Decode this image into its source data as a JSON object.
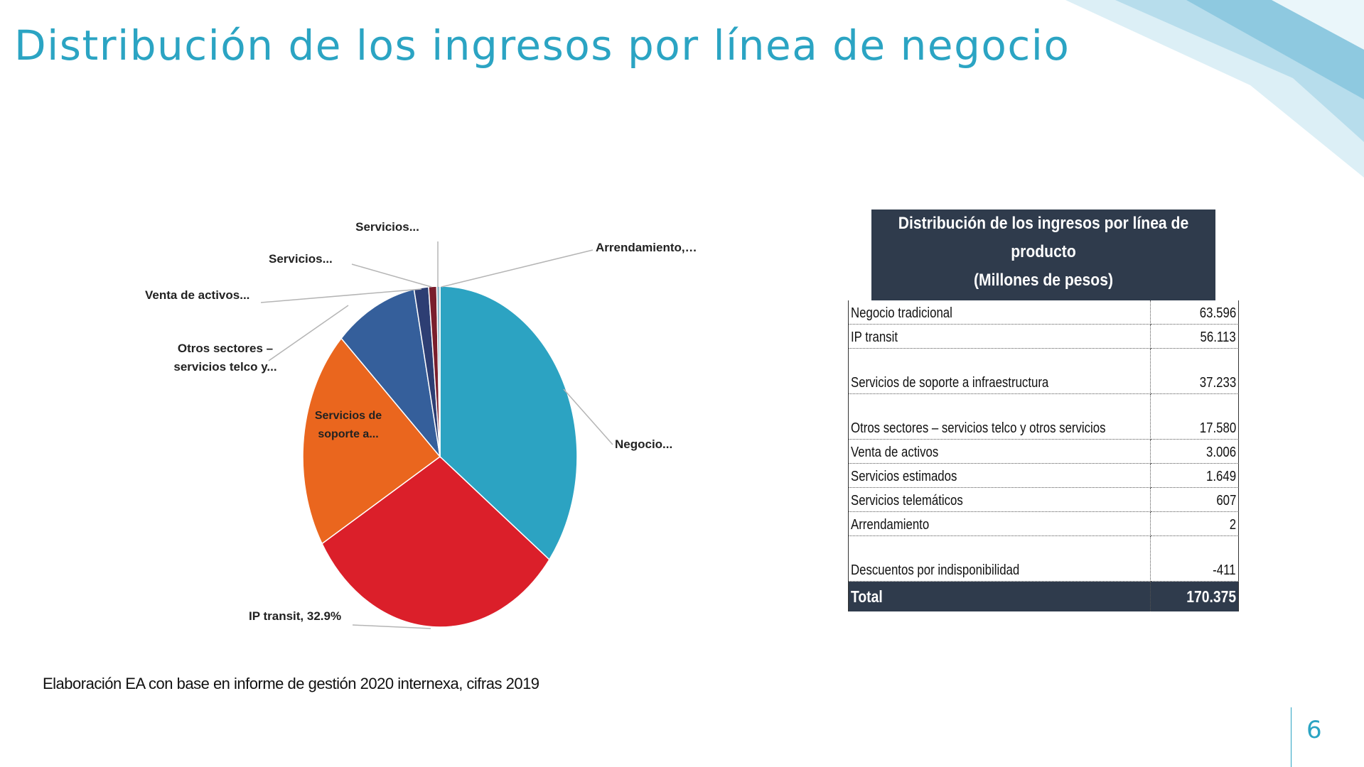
{
  "slide": {
    "title": "Distribución de los ingresos por línea de negocio",
    "footnote": "Elaboración EA con base en informe de gestión 2020  internexa, cifras 2019",
    "page_number": "6"
  },
  "colors": {
    "title": "#2BA4C3",
    "table_header": "#2F3B4C"
  },
  "chart_data": {
    "type": "pie",
    "start": "12 o'clock, clockwise",
    "slices": [
      {
        "label": "Negocio...",
        "value": 37.3,
        "color": "#2CA3C2"
      },
      {
        "label": "IP transit, 32.9%",
        "value": 32.9,
        "color": "#DB1F2A"
      },
      {
        "label": "Servicios de soporte a...",
        "value": 21.9,
        "color": "#EA661E"
      },
      {
        "label": "Otros sectores – servicios telco y...",
        "value": 10.3,
        "color": "#355F9B"
      },
      {
        "label": "Venta de activos...",
        "value": 1.8,
        "color": "#2D3E73"
      },
      {
        "label": "Servicios...",
        "value": 1.0,
        "color": "#7A1E2C"
      },
      {
        "label": "Servicios...",
        "value": 0.4,
        "color": "#8FB7C7"
      },
      {
        "label": "Arrendamiento,…",
        "value": 0.001,
        "color": "#2CA3C2"
      }
    ]
  },
  "table": {
    "title_line1": "Distribución de los ingresos por línea de producto",
    "title_line2": "(Millones de pesos)",
    "rows": [
      {
        "label": "Negocio tradicional",
        "value": "63.596"
      },
      {
        "label": "IP transit",
        "value": "56.113"
      },
      {
        "label": "Servicios de soporte a infraestructura",
        "value": "37.233"
      },
      {
        "label": "Otros sectores – servicios telco y otros servicios",
        "value": "17.580"
      },
      {
        "label": "Venta de activos",
        "value": "3.006"
      },
      {
        "label": "Servicios estimados",
        "value": "1.649"
      },
      {
        "label": "Servicios telemáticos",
        "value": "607"
      },
      {
        "label": "Arrendamiento",
        "value": "2"
      },
      {
        "label": "Descuentos por indisponibilidad",
        "value": "-411"
      }
    ],
    "total_label": "Total",
    "total_value": "170.375"
  }
}
